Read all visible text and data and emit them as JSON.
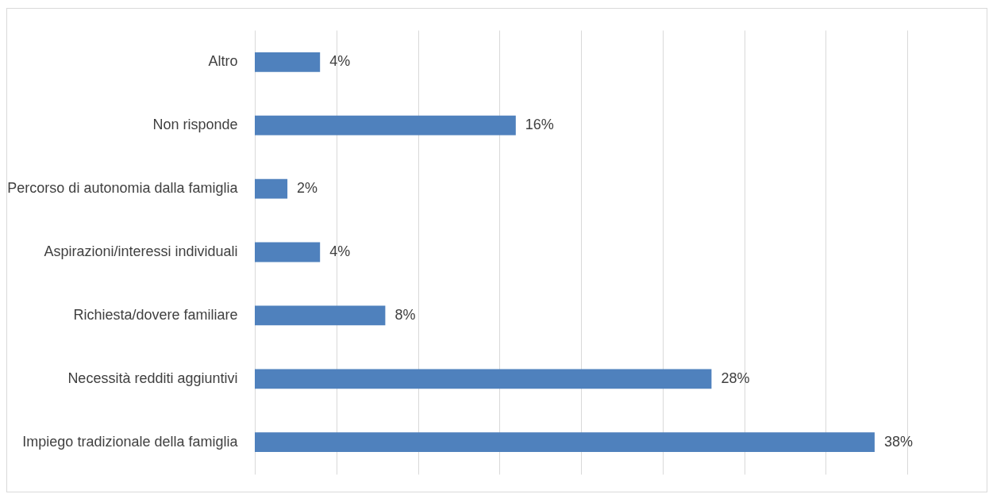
{
  "chart_data": {
    "type": "bar",
    "orientation": "horizontal",
    "categories": [
      "Altro",
      "Non risponde",
      "Percorso di autonomia dalla famiglia",
      "Aspirazioni/interessi individuali",
      "Richiesta/dovere familiare",
      "Necessità redditi aggiuntivi",
      "Impiego tradizionale della famiglia"
    ],
    "values": [
      4,
      16,
      2,
      4,
      8,
      28,
      38
    ],
    "value_labels": [
      "4%",
      "16%",
      "2%",
      "4%",
      "8%",
      "28%",
      "38%"
    ],
    "color": "#4f81bd",
    "xlim": [
      0,
      40
    ],
    "xticks": [
      {
        "value": 0,
        "label": null
      },
      {
        "value": 5,
        "label": null
      },
      {
        "value": 10,
        "label": null
      },
      {
        "value": 15,
        "label": null
      },
      {
        "value": 20,
        "label": null
      },
      {
        "value": 25,
        "label": null
      },
      {
        "value": 30,
        "label": null
      },
      {
        "value": 35,
        "label": null
      },
      {
        "value": 40,
        "label": null
      }
    ],
    "tick_labels": "y",
    "grid": "x"
  }
}
